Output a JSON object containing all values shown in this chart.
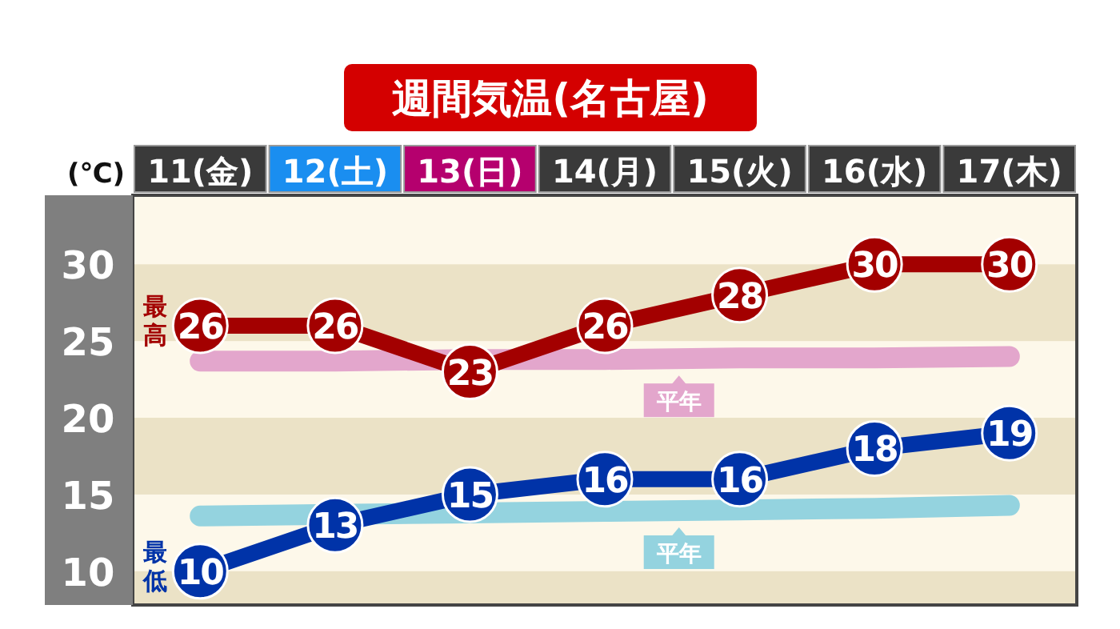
{
  "chart_data": {
    "type": "line",
    "title": "週間気温(名古屋)",
    "ylabel": "(℃)",
    "categories": [
      "11(金)",
      "12(土)",
      "13(日)",
      "14(月)",
      "15(火)",
      "16(水)",
      "17(木)"
    ],
    "series": [
      {
        "color": "#e3a6cc",
        "values": [
          23.7,
          23.7,
          23.8,
          23.8,
          23.9,
          23.9,
          24.0
        ],
        "marker": "none"
      },
      {
        "color": "#94d3df",
        "values": [
          13.6,
          13.7,
          13.8,
          13.9,
          14.0,
          14.1,
          14.3
        ],
        "marker": "none"
      },
      {
        "name": "最高",
        "color": "#a30000",
        "values": [
          26,
          26,
          23,
          26,
          28,
          30,
          30
        ],
        "marker": "circle",
        "value_labels": [
          "26",
          "26",
          "23",
          "26",
          "28",
          "30",
          "30"
        ]
      },
      {
        "name": "最低",
        "color": "#0033a8",
        "values": [
          10,
          13,
          15,
          16,
          16,
          18,
          19
        ],
        "marker": "circle",
        "value_labels": [
          "10",
          "13",
          "15",
          "16",
          "16",
          "18",
          "19"
        ]
      }
    ],
    "annotations": [
      {
        "text": "平年",
        "y": 23.8
      },
      {
        "text": "平年",
        "y": 13.9
      }
    ],
    "ylim": [
      7.8,
      34.5
    ],
    "yticks": [
      10,
      15,
      20,
      25,
      30
    ],
    "bands": [
      {
        "axis": "y",
        "from": 25,
        "to": 30,
        "color": "#ebe2c6"
      },
      {
        "axis": "y",
        "from": 15,
        "to": 20,
        "color": "#ebe2c6"
      },
      {
        "axis": "y",
        "from": 7.8,
        "to": 10,
        "color": "#ebe2c6"
      }
    ],
    "grid": false
  }
}
